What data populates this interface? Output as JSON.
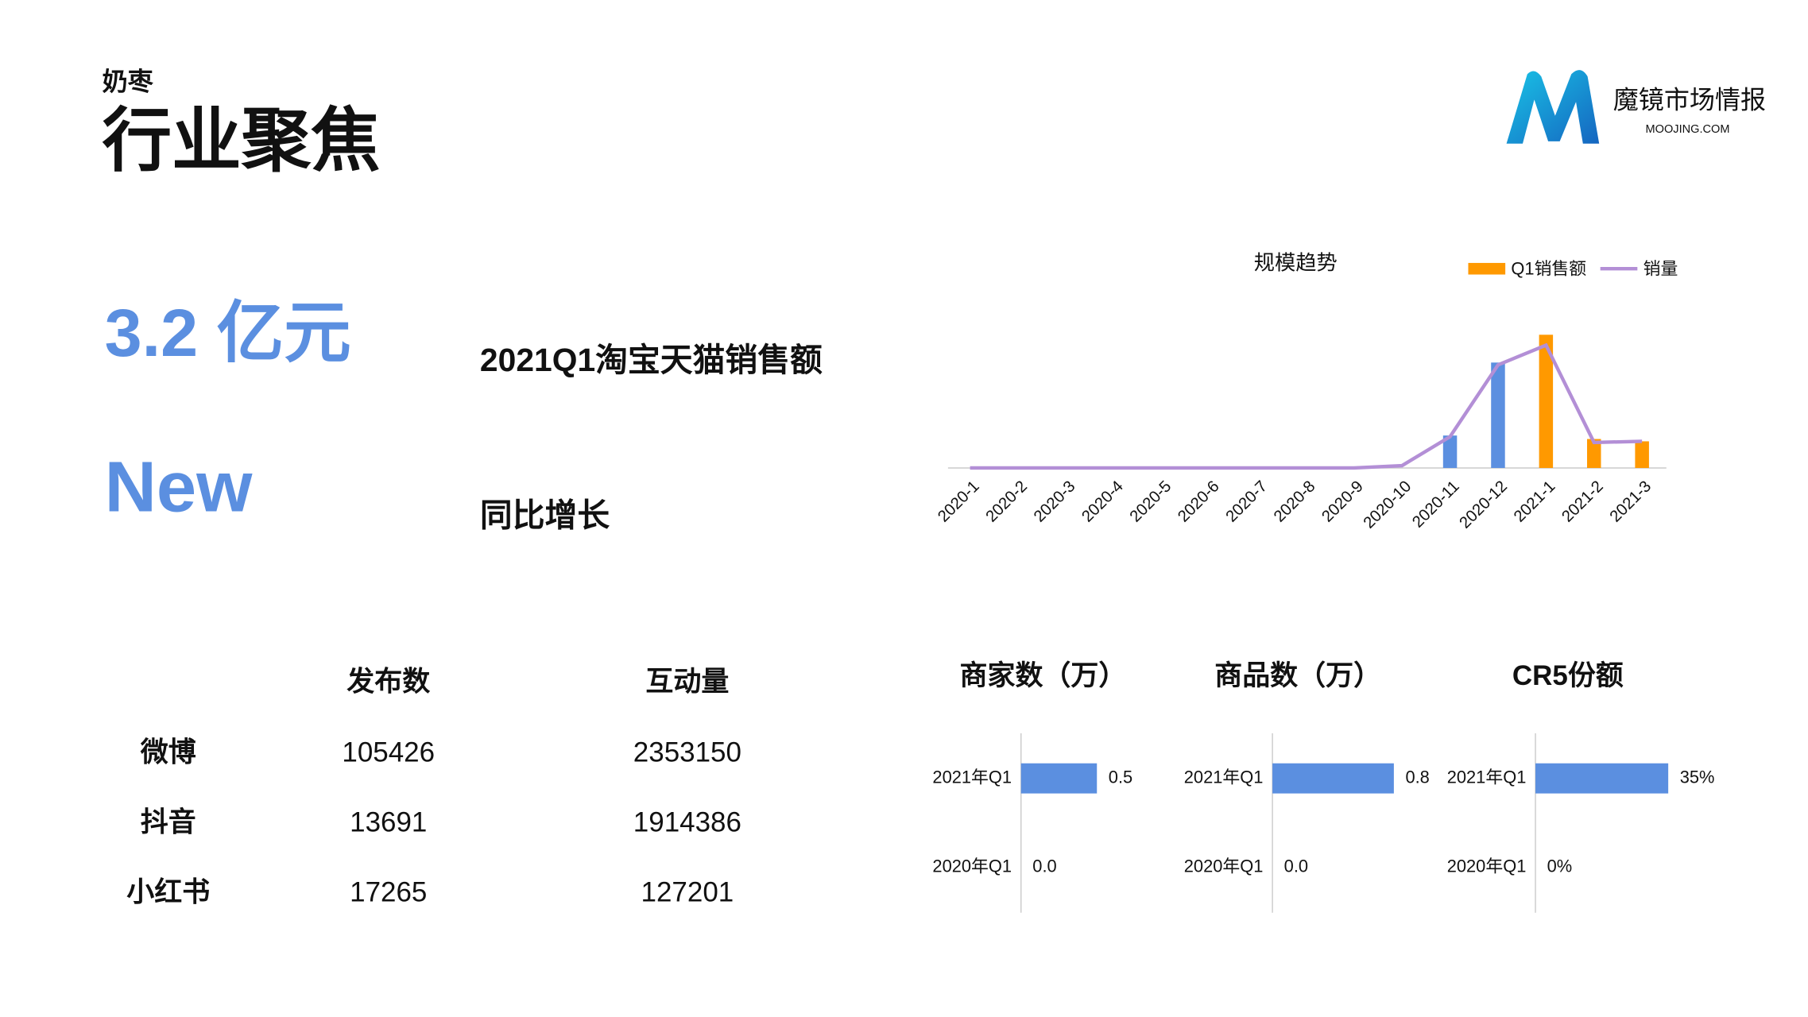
{
  "header": {
    "category": "奶枣",
    "title": "行业聚焦"
  },
  "logo": {
    "name": "魔镜市场情报",
    "site": "MOOJING.COM"
  },
  "kpis": [
    {
      "value": "3.2 亿元",
      "label": "2021Q1淘宝天猫销售额"
    },
    {
      "value": "New",
      "label": "同比增长"
    }
  ],
  "table": {
    "columns": [
      "发布数",
      "互动量"
    ],
    "rows": [
      [
        "微博",
        "105426",
        "2353150"
      ],
      [
        "抖音",
        "13691",
        "1914386"
      ],
      [
        "小红书",
        "17265",
        "127201"
      ]
    ]
  },
  "chart_data": [
    {
      "type": "combo",
      "title": "规模趋势",
      "categories": [
        "2020-1",
        "2020-2",
        "2020-3",
        "2020-4",
        "2020-5",
        "2020-6",
        "2020-7",
        "2020-8",
        "2020-9",
        "2020-10",
        "2020-11",
        "2020-12",
        "2021-1",
        "2021-2",
        "2021-3"
      ],
      "series": [
        {
          "name": "Q1销售额",
          "type": "bar",
          "color": "#ff9900",
          "colors": [
            "#5b8fe0",
            "#5b8fe0",
            "#5b8fe0",
            "#5b8fe0",
            "#5b8fe0",
            "#5b8fe0",
            "#5b8fe0",
            "#5b8fe0",
            "#5b8fe0",
            "#5b8fe0",
            "#5b8fe0",
            "#5b8fe0",
            "#ff9900",
            "#ff9900",
            "#ff9900"
          ],
          "values": [
            0,
            0,
            0,
            0,
            0,
            0,
            0,
            0,
            0,
            0,
            28,
            91,
            115,
            25,
            23
          ]
        },
        {
          "name": "销量",
          "type": "line",
          "color": "#b38fd6",
          "values": [
            0,
            0,
            0,
            0,
            0,
            0,
            0,
            0,
            0,
            2,
            27,
            89,
            106,
            22,
            23
          ]
        }
      ],
      "ylim": [
        0,
        120
      ]
    },
    {
      "type": "hbar",
      "title": "商家数（万）",
      "categories": [
        "2021年Q1",
        "2020年Q1"
      ],
      "values": [
        0.5,
        0.0
      ],
      "value_labels": [
        "0.5",
        "0.0"
      ],
      "color": "#5b8fe0",
      "xlim": [
        0,
        1
      ]
    },
    {
      "type": "hbar",
      "title": "商品数（万）",
      "categories": [
        "2021年Q1",
        "2020年Q1"
      ],
      "values": [
        0.8,
        0.0
      ],
      "value_labels": [
        "0.8",
        "0.0"
      ],
      "color": "#5b8fe0",
      "xlim": [
        0,
        1
      ]
    },
    {
      "type": "hbar",
      "title": "CR5份额",
      "categories": [
        "2021年Q1",
        "2020年Q1"
      ],
      "values": [
        35,
        0
      ],
      "value_labels": [
        "35%",
        "0%"
      ],
      "color": "#5b8fe0",
      "xlim": [
        0,
        40
      ]
    }
  ]
}
